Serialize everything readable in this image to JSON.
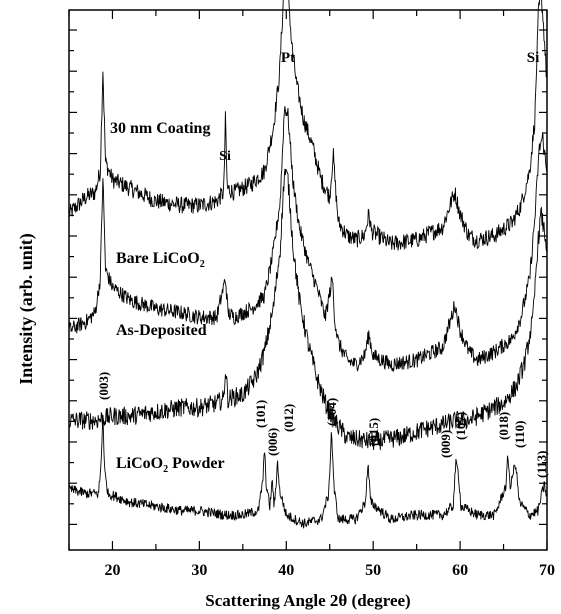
{
  "chart_data": {
    "type": "line",
    "xlabel": "Scattering Angle 2θ (degree)",
    "ylabel": "Intensity (arb. unit)",
    "xlim": [
      15,
      70
    ],
    "xticks": [
      20,
      30,
      40,
      50,
      60,
      70
    ],
    "y_tick_labels": "none",
    "grid": false,
    "legend": "none",
    "series": [
      {
        "name": "30 nm Coating",
        "offset": 0.7,
        "noise": 0.02,
        "points": [
          [
            15,
            0.0
          ],
          [
            16,
            0.02
          ],
          [
            17,
            0.04
          ],
          [
            18,
            0.05
          ],
          [
            18.6,
            0.1
          ],
          [
            18.9,
            0.34
          ],
          [
            19.2,
            0.12
          ],
          [
            20,
            0.08
          ],
          [
            22,
            0.06
          ],
          [
            25,
            0.03
          ],
          [
            28,
            0.02
          ],
          [
            30,
            0.02
          ],
          [
            32,
            0.03
          ],
          [
            32.8,
            0.05
          ],
          [
            33.0,
            0.22
          ],
          [
            33.2,
            0.06
          ],
          [
            34,
            0.05
          ],
          [
            36,
            0.07
          ],
          [
            37.5,
            0.1
          ],
          [
            38.5,
            0.2
          ],
          [
            39.2,
            0.32
          ],
          [
            39.8,
            0.55
          ],
          [
            40.1,
            0.56
          ],
          [
            40.6,
            0.4
          ],
          [
            41.2,
            0.3
          ],
          [
            42,
            0.22
          ],
          [
            43,
            0.16
          ],
          [
            44,
            0.08
          ],
          [
            45,
            0.04
          ],
          [
            45.4,
            0.14
          ],
          [
            45.7,
            0.05
          ],
          [
            46,
            -0.02
          ],
          [
            47,
            -0.05
          ],
          [
            48,
            -0.06
          ],
          [
            49,
            -0.05
          ],
          [
            49.5,
            0.0
          ],
          [
            49.8,
            -0.04
          ],
          [
            52,
            -0.07
          ],
          [
            55,
            -0.06
          ],
          [
            58,
            -0.03
          ],
          [
            59,
            0.03
          ],
          [
            59.4,
            0.05
          ],
          [
            60,
            0.0
          ],
          [
            61,
            -0.05
          ],
          [
            62,
            -0.06
          ],
          [
            64,
            -0.05
          ],
          [
            66,
            -0.02
          ],
          [
            67,
            0.02
          ],
          [
            68,
            0.1
          ],
          [
            68.6,
            0.22
          ],
          [
            69.0,
            0.46
          ],
          [
            69.3,
            0.52
          ],
          [
            69.6,
            0.44
          ],
          [
            70,
            0.3
          ]
        ]
      },
      {
        "name": "Bare LiCoO2",
        "offset": 0.43,
        "noise": 0.018,
        "points": [
          [
            15,
            0.0
          ],
          [
            17,
            0.02
          ],
          [
            18,
            0.04
          ],
          [
            18.6,
            0.12
          ],
          [
            18.9,
            0.36
          ],
          [
            19.2,
            0.14
          ],
          [
            20,
            0.1
          ],
          [
            22,
            0.07
          ],
          [
            25,
            0.05
          ],
          [
            28,
            0.04
          ],
          [
            30,
            0.03
          ],
          [
            32,
            0.03
          ],
          [
            33,
            0.12
          ],
          [
            33.3,
            0.04
          ],
          [
            34,
            0.03
          ],
          [
            36,
            0.05
          ],
          [
            37.5,
            0.08
          ],
          [
            38.5,
            0.18
          ],
          [
            39.3,
            0.3
          ],
          [
            39.8,
            0.52
          ],
          [
            40.2,
            0.5
          ],
          [
            40.8,
            0.34
          ],
          [
            41.5,
            0.24
          ],
          [
            42.5,
            0.16
          ],
          [
            43.5,
            0.1
          ],
          [
            44.5,
            0.03
          ],
          [
            45.3,
            0.12
          ],
          [
            45.6,
            0.02
          ],
          [
            46,
            -0.03
          ],
          [
            47,
            -0.07
          ],
          [
            48,
            -0.08
          ],
          [
            49,
            -0.06
          ],
          [
            49.5,
            -0.01
          ],
          [
            50,
            -0.06
          ],
          [
            52,
            -0.08
          ],
          [
            55,
            -0.07
          ],
          [
            58,
            -0.04
          ],
          [
            59,
            0.03
          ],
          [
            59.4,
            0.06
          ],
          [
            60,
            0.0
          ],
          [
            61,
            -0.05
          ],
          [
            62,
            -0.07
          ],
          [
            64,
            -0.05
          ],
          [
            66,
            -0.02
          ],
          [
            67,
            0.03
          ],
          [
            68,
            0.12
          ],
          [
            68.6,
            0.26
          ],
          [
            69.1,
            0.42
          ],
          [
            69.5,
            0.45
          ],
          [
            70,
            0.36
          ]
        ]
      },
      {
        "name": "As-Deposited",
        "offset": 0.22,
        "noise": 0.022,
        "points": [
          [
            15,
            0.0
          ],
          [
            18,
            0.0
          ],
          [
            20,
            0.01
          ],
          [
            22,
            0.01
          ],
          [
            25,
            0.02
          ],
          [
            28,
            0.03
          ],
          [
            30,
            0.03
          ],
          [
            32,
            0.04
          ],
          [
            32.8,
            0.05
          ],
          [
            33.0,
            0.12
          ],
          [
            33.3,
            0.05
          ],
          [
            35,
            0.06
          ],
          [
            36.5,
            0.1
          ],
          [
            37.5,
            0.16
          ],
          [
            38.5,
            0.26
          ],
          [
            39.3,
            0.4
          ],
          [
            39.8,
            0.58
          ],
          [
            40.2,
            0.56
          ],
          [
            40.8,
            0.4
          ],
          [
            41.5,
            0.28
          ],
          [
            42.5,
            0.18
          ],
          [
            43.5,
            0.1
          ],
          [
            44.5,
            0.04
          ],
          [
            45.5,
            0.0
          ],
          [
            47,
            -0.04
          ],
          [
            50,
            -0.05
          ],
          [
            53,
            -0.04
          ],
          [
            56,
            -0.02
          ],
          [
            58,
            -0.01
          ],
          [
            59.5,
            0.0
          ],
          [
            61,
            0.0
          ],
          [
            63,
            0.02
          ],
          [
            65,
            0.04
          ],
          [
            66.5,
            0.08
          ],
          [
            67.5,
            0.14
          ],
          [
            68.4,
            0.24
          ],
          [
            68.9,
            0.4
          ],
          [
            69.3,
            0.48
          ],
          [
            69.7,
            0.44
          ],
          [
            70,
            0.4
          ]
        ]
      },
      {
        "name": "LiCoO2 Powder",
        "offset": 0.0,
        "noise": 0.012,
        "points": [
          [
            15,
            0.06
          ],
          [
            17,
            0.05
          ],
          [
            18.4,
            0.05
          ],
          [
            18.7,
            0.12
          ],
          [
            18.9,
            0.24
          ],
          [
            19.1,
            0.1
          ],
          [
            19.5,
            0.05
          ],
          [
            22,
            0.03
          ],
          [
            25,
            0.02
          ],
          [
            28,
            0.01
          ],
          [
            30,
            0.01
          ],
          [
            33,
            0.0
          ],
          [
            35,
            0.0
          ],
          [
            36.8,
            0.01
          ],
          [
            37.3,
            0.08
          ],
          [
            37.5,
            0.15
          ],
          [
            37.7,
            0.07
          ],
          [
            38.1,
            0.02
          ],
          [
            38.4,
            0.08
          ],
          [
            38.6,
            0.02
          ],
          [
            38.8,
            0.06
          ],
          [
            39.0,
            0.13
          ],
          [
            39.2,
            0.06
          ],
          [
            40,
            0.0
          ],
          [
            42,
            -0.02
          ],
          [
            44,
            -0.01
          ],
          [
            44.9,
            0.05
          ],
          [
            45.2,
            0.2
          ],
          [
            45.5,
            0.06
          ],
          [
            46,
            -0.01
          ],
          [
            48,
            -0.01
          ],
          [
            49.1,
            0.03
          ],
          [
            49.4,
            0.12
          ],
          [
            49.7,
            0.03
          ],
          [
            52,
            -0.01
          ],
          [
            55,
            0.0
          ],
          [
            58,
            0.0
          ],
          [
            59.2,
            0.02
          ],
          [
            59.5,
            0.12
          ],
          [
            59.8,
            0.1
          ],
          [
            60.1,
            0.02
          ],
          [
            62,
            0.0
          ],
          [
            64,
            0.0
          ],
          [
            65.3,
            0.07
          ],
          [
            65.5,
            0.14
          ],
          [
            65.8,
            0.06
          ],
          [
            66.1,
            0.1
          ],
          [
            66.4,
            0.12
          ],
          [
            66.8,
            0.03
          ],
          [
            68,
            0.0
          ],
          [
            69,
            0.01
          ],
          [
            69.4,
            0.05
          ],
          [
            69.7,
            0.07
          ],
          [
            70,
            0.04
          ]
        ]
      }
    ],
    "annotations": [
      {
        "text": "Pt",
        "kind": "plain",
        "x": 39.3
      },
      {
        "text": "Si",
        "kind": "plain",
        "x": 69.0
      },
      {
        "text": "Si",
        "kind": "plain",
        "x": 33.0
      },
      {
        "text": "30 nm Coating",
        "kind": "plain"
      },
      {
        "text": "Bare LiCoO",
        "sub": "2",
        "kind": "plain"
      },
      {
        "text": "As-Deposited",
        "kind": "plain"
      },
      {
        "text": "LiCoO",
        "sub": "2",
        "tail": " Powder",
        "kind": "plain"
      },
      {
        "text": "(003)",
        "kind": "rot",
        "x": 18.9
      },
      {
        "text": "(101)",
        "kind": "rot",
        "x": 37.4
      },
      {
        "text": "(006)",
        "kind": "rot",
        "x": 38.4
      },
      {
        "text": "(012)",
        "kind": "rot",
        "x": 39.9
      },
      {
        "text": "(104)",
        "kind": "rot",
        "x": 45.4
      },
      {
        "text": "(015)",
        "kind": "rot",
        "x": 49.6
      },
      {
        "text": "(009)",
        "kind": "rot",
        "x": 58.8
      },
      {
        "text": "(107)",
        "kind": "rot",
        "x": 60.0
      },
      {
        "text": "(018)",
        "kind": "rot",
        "x": 65.2
      },
      {
        "text": "(110)",
        "kind": "rot",
        "x": 66.5
      },
      {
        "text": "(113)",
        "kind": "rot",
        "x": 68.9
      }
    ]
  }
}
